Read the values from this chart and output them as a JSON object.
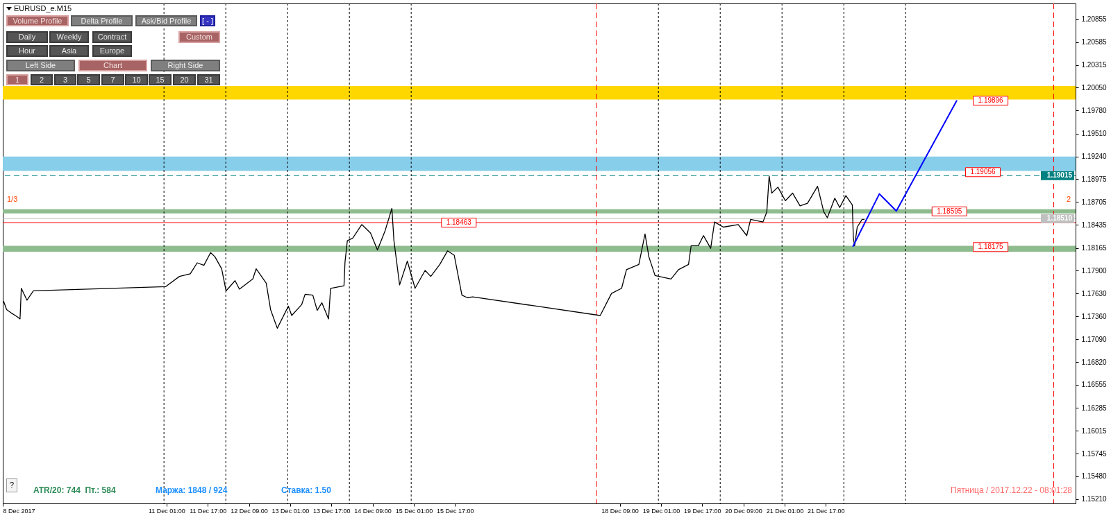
{
  "chart_data": {
    "type": "line",
    "title": "EURUSD_e.M15",
    "xlim": [
      "2017-12-08T09:24",
      "2017-12-25T18:00"
    ],
    "xticks": [
      {
        "value": "2017-12-08T09:24",
        "label": "8 Dec 2017"
      },
      {
        "value": "2017-12-11T01:00",
        "label": "11 Dec 01:00"
      },
      {
        "value": "2017-12-11T17:00",
        "label": "11 Dec 17:00"
      },
      {
        "value": "2017-12-12T09:00",
        "label": "12 Dec 09:00"
      },
      {
        "value": "2017-12-13T01:00",
        "label": "13 Dec 01:00"
      },
      {
        "value": "2017-12-13T17:00",
        "label": "13 Dec 17:00"
      },
      {
        "value": "2017-12-14T09:00",
        "label": "14 Dec 09:00"
      },
      {
        "value": "2017-12-15T01:00",
        "label": "15 Dec 01:00"
      },
      {
        "value": "2017-12-15T17:00",
        "label": "15 Dec 17:00"
      },
      {
        "value": "2017-12-18T09:00",
        "label": "18 Dec 09:00"
      },
      {
        "value": "2017-12-19T01:00",
        "label": "19 Dec 01:00"
      },
      {
        "value": "2017-12-19T17:00",
        "label": "19 Dec 17:00"
      },
      {
        "value": "2017-12-20T09:00",
        "label": "20 Dec 09:00"
      },
      {
        "value": "2017-12-21T01:00",
        "label": "21 Dec 01:00"
      },
      {
        "value": "2017-12-21T17:00",
        "label": "21 Dec 17:00"
      }
    ],
    "ylim": [
      1.1516,
      1.2104
    ],
    "yticks": [
      {
        "value": 1.1521,
        "label": "1.15210"
      },
      {
        "value": 1.1548,
        "label": "1.15480"
      },
      1.15745,
      1.16015,
      1.16285,
      1.16555,
      {
        "value": 1.1682,
        "label": "1.16820"
      },
      {
        "value": 1.1709,
        "label": "1.17090"
      },
      {
        "value": 1.1736,
        "label": "1.17360"
      },
      {
        "value": 1.1763,
        "label": "1.17630"
      },
      {
        "value": 1.179,
        "label": "1.17900"
      },
      1.18165,
      1.18435,
      1.18705,
      1.18975,
      {
        "value": 1.1924,
        "label": "1.19240"
      },
      {
        "value": 1.1951,
        "label": "1.19510"
      },
      {
        "value": 1.1978,
        "label": "1.19780"
      },
      {
        "value": 1.2005,
        "label": "1.20050"
      },
      1.20315,
      1.20585,
      1.20855
    ],
    "line_style": "solid",
    "series": [
      {
        "color": "#000000",
        "x": [
          "2017-12-08T09:42",
          "2017-12-08T10:54",
          "2017-12-08T12:42",
          "2017-12-08T14:48",
          "2017-12-08T16:06",
          "2017-12-08T16:36",
          "2017-12-08T18:48",
          "2017-12-08T21:18",
          "2017-12-11T00:42",
          "2017-12-11T06:00",
          "2017-12-11T10:12",
          "2017-12-11T12:54",
          "2017-12-11T15:30",
          "2017-12-11T18:06",
          "2017-12-11T19:48",
          "2017-12-11T22:24",
          "2017-12-12T00:06",
          "2017-12-12T03:36",
          "2017-12-12T05:18",
          "2017-12-12T10:30",
          "2017-12-12T11:48",
          "2017-12-12T15:42",
          "2017-12-12T17:24",
          "2017-12-12T20:00",
          "2017-12-13T00:18",
          "2017-12-13T01:36",
          "2017-12-13T05:30",
          "2017-12-13T06:48",
          "2017-12-13T09:48",
          "2017-12-13T11:30",
          "2017-12-13T13:18",
          "2017-12-13T15:54",
          "2017-12-13T16:42",
          "2017-12-13T21:54",
          "2017-12-13T22:18",
          "2017-12-13T23:12",
          "2017-12-14T01:18",
          "2017-12-14T04:48",
          "2017-12-14T08:12",
          "2017-12-14T10:54",
          "2017-12-14T13:54",
          "2017-12-14T16:30",
          "2017-12-14T17:18",
          "2017-12-14T19:30",
          "2017-12-14T22:30",
          "2017-12-15T01:30",
          "2017-12-15T05:24",
          "2017-12-15T07:36",
          "2017-12-15T11:06",
          "2017-12-15T14:06",
          "2017-12-15T16:42",
          "2017-12-15T18:48",
          "2017-12-15T19:42",
          "2017-12-15T21:48",
          "2017-12-15T23:54",
          "2017-12-18T01:24",
          "2017-12-18T05:48",
          "2017-12-18T09:42",
          "2017-12-18T11:36",
          "2017-12-18T16:24",
          "2017-12-18T18:48",
          "2017-12-18T20:18",
          "2017-12-18T22:42",
          "2017-12-19T04:54",
          "2017-12-19T07:48",
          "2017-12-19T11:42",
          "2017-12-19T12:42",
          "2017-12-19T15:30",
          "2017-12-19T17:30",
          "2017-12-19T20:18",
          "2017-12-19T21:48",
          "2017-12-20T01:12",
          "2017-12-20T07:00",
          "2017-12-20T10:18",
          "2017-12-20T11:48",
          "2017-12-20T16:36",
          "2017-12-20T18:06",
          "2017-12-20T19:00",
          "2017-12-20T20:00",
          "2017-12-20T22:24",
          "2017-12-21T01:18",
          "2017-12-21T04:06",
          "2017-12-21T07:00",
          "2017-12-21T09:54",
          "2017-12-21T13:48",
          "2017-12-21T16:12",
          "2017-12-21T17:36",
          "2017-12-21T20:30",
          "2017-12-21T22:24",
          "2017-12-22T00:48",
          "2017-12-22T03:18",
          "2017-12-22T03:42",
          "2017-12-22T04:12",
          "2017-12-22T05:12",
          "2017-12-22T07:06",
          "2017-12-22T08:00"
        ],
        "values": [
          1.1754,
          1.1744,
          1.174,
          1.1736,
          1.1733,
          1.1769,
          1.1755,
          1.1766,
          1.1771,
          1.1783,
          1.1786,
          1.1799,
          1.1796,
          1.1811,
          1.1806,
          1.1792,
          1.1766,
          1.1778,
          1.1768,
          1.178,
          1.1792,
          1.1775,
          1.1744,
          1.1722,
          1.1748,
          1.1737,
          1.175,
          1.1762,
          1.1761,
          1.1743,
          1.1752,
          1.1733,
          1.1769,
          1.1772,
          1.18,
          1.1825,
          1.1828,
          1.1844,
          1.1834,
          1.1814,
          1.1837,
          1.1863,
          1.1825,
          1.1773,
          1.1801,
          1.1769,
          1.179,
          1.1783,
          1.1797,
          1.1813,
          1.1808,
          1.1775,
          1.1761,
          1.1758,
          1.1759,
          1.1737,
          1.1763,
          1.1769,
          1.1791,
          1.1797,
          1.1833,
          1.1806,
          1.1784,
          1.178,
          1.1791,
          1.1797,
          1.1819,
          1.1819,
          1.1831,
          1.1816,
          1.1847,
          1.1841,
          1.1844,
          1.1831,
          1.185,
          1.1847,
          1.1859,
          1.1901,
          1.1881,
          1.1888,
          1.1872,
          1.1881,
          1.1866,
          1.1869,
          1.1889,
          1.1859,
          1.1852,
          1.1875,
          1.1864,
          1.1878,
          1.1867,
          1.1828,
          1.1819,
          1.1841,
          1.185,
          1.185
        ]
      },
      {
        "color": "#0000ff",
        "x": [
          "2017-12-22T03:30",
          "2017-12-22T13:48",
          "2017-12-22T20:24",
          "2017-12-23T19:54"
        ],
        "values": [
          1.1818,
          1.188,
          1.186,
          1.199
        ]
      }
    ],
    "bands": [
      {
        "axis": "y",
        "from": 1.1991,
        "to": 1.2007,
        "color": "#ffd700"
      },
      {
        "axis": "y",
        "from": 1.1907,
        "to": 1.1924,
        "color": "#87ceeb"
      },
      {
        "axis": "y",
        "from": 1.1857,
        "to": 1.1862,
        "color": "#8fbc8f"
      },
      {
        "axis": "y",
        "from": 1.1812,
        "to": 1.1819,
        "color": "#8fbc8f"
      }
    ],
    "ref_lines": [
      {
        "axis": "y",
        "value": 1.19015,
        "label": "1.19015",
        "color": "#008080",
        "line_style": "dashed"
      },
      {
        "axis": "y",
        "value": 1.1851,
        "label": "1.18510",
        "color": "#c0c0c0",
        "line_style": "solid"
      },
      {
        "axis": "y",
        "value": 1.18463,
        "color": "#ff0000",
        "line_style": "solid"
      },
      {
        "axis": "x",
        "value": "2017-12-11",
        "color": "#000000",
        "line_style": "dotted"
      },
      {
        "axis": "x",
        "value": "2017-12-12",
        "color": "#000000",
        "line_style": "dotted"
      },
      {
        "axis": "x",
        "value": "2017-12-13",
        "color": "#000000",
        "line_style": "dotted"
      },
      {
        "axis": "x",
        "value": "2017-12-14",
        "color": "#000000",
        "line_style": "dotted"
      },
      {
        "axis": "x",
        "value": "2017-12-15",
        "color": "#000000",
        "line_style": "dotted"
      },
      {
        "axis": "x",
        "value": "2017-12-18",
        "color": "#ff0000",
        "line_style": "dashed"
      },
      {
        "axis": "x",
        "value": "2017-12-19",
        "color": "#000000",
        "line_style": "dotted"
      },
      {
        "axis": "x",
        "value": "2017-12-20",
        "color": "#000000",
        "line_style": "dotted"
      },
      {
        "axis": "x",
        "value": "2017-12-21",
        "color": "#000000",
        "line_style": "dotted"
      },
      {
        "axis": "x",
        "value": "2017-12-22",
        "color": "#000000",
        "line_style": "dotted"
      },
      {
        "axis": "x",
        "value": "2017-12-23",
        "color": "#000000",
        "line_style": "dotted"
      },
      {
        "axis": "x",
        "value": "2017-12-25T09:30",
        "color": "#ff0000",
        "line_style": "dashed"
      }
    ],
    "annotations": [
      {
        "text": "1.19896",
        "x": "2017-12-24T09:00",
        "y": 1.19896
      },
      {
        "text": "1.19056",
        "x": "2017-12-24T06:00",
        "y": 1.19056
      },
      {
        "text": "1.18595",
        "x": "2017-12-23T17:00",
        "y": 1.18595
      },
      {
        "text": "1.18175",
        "x": "2017-12-24T09:00",
        "y": 1.18175
      },
      {
        "text": "1.18463",
        "x": "2017-12-15T18:30",
        "y": 1.18463
      },
      "1/3",
      "2",
      "ATR/20: 744  Пт.: 584",
      "Маржа: 1848 / 924",
      "Ставка: 1.50",
      "Пятница / 2017.12.22 - 08:01:28",
      "?",
      "Volume Profile",
      "Delta Profile",
      "Ask/Bid Profile",
      "[ - ]",
      "Daily",
      "Weekly",
      "Contract",
      "Custom",
      "Hour",
      "Asia",
      "Europe",
      "Left Side",
      "Chart",
      "Right Side",
      "1",
      "2",
      "3",
      "5",
      "7",
      "10",
      "15",
      "20",
      "31"
    ]
  }
}
